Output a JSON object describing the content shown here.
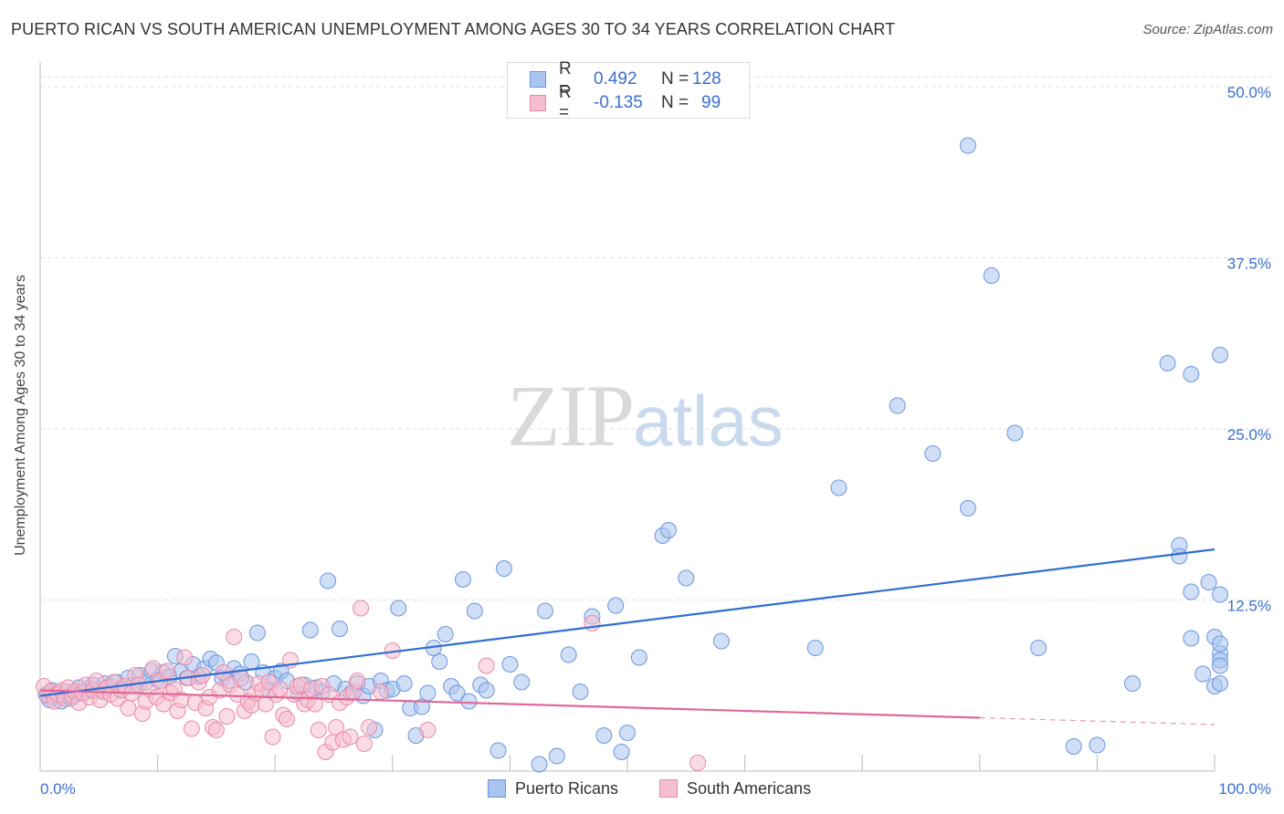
{
  "header": {
    "title": "PUERTO RICAN VS SOUTH AMERICAN UNEMPLOYMENT AMONG AGES 30 TO 34 YEARS CORRELATION CHART",
    "source": "Source: ZipAtlas.com"
  },
  "watermark": {
    "zip": "ZIP",
    "atlas": "atlas"
  },
  "legend": {
    "rows": [
      {
        "r_label": "R =",
        "r_value": "0.492",
        "n_label": "N =",
        "n_value": "128",
        "color": "#a9c4ef",
        "border": "#6b97de"
      },
      {
        "r_label": "R =",
        "r_value": "-0.135",
        "n_label": "N =",
        "n_value": "99",
        "color": "#f6bfd0",
        "border": "#e98aa9"
      }
    ]
  },
  "bottom_legend": [
    {
      "label": "Puerto Ricans",
      "color": "#a9c4ef",
      "border": "#6b97de"
    },
    {
      "label": "South Americans",
      "color": "#f6bfd0",
      "border": "#e98aa9"
    }
  ],
  "chart_data": {
    "type": "scatter",
    "title": "PUERTO RICAN VS SOUTH AMERICAN UNEMPLOYMENT AMONG AGES 30 TO 34 YEARS CORRELATION CHART",
    "xlabel": "",
    "ylabel": "Unemployment Among Ages 30 to 34 years",
    "xlim": [
      0,
      100
    ],
    "ylim": [
      0,
      51
    ],
    "x_tick_labels": [
      "0.0%",
      "100.0%"
    ],
    "y_ticks": [
      12.5,
      25.0,
      37.5,
      50.0
    ],
    "y_tick_labels": [
      "12.5%",
      "25.0%",
      "37.5%",
      "50.0%"
    ],
    "series": [
      {
        "name": "Puerto Ricans",
        "color": "#6b97de",
        "fill": "#a9c4ef",
        "trend": {
          "x": [
            0,
            100
          ],
          "y": [
            5.5,
            16.2
          ],
          "line_color": "#2f6fd0"
        },
        "points": [
          [
            0.5,
            5.6
          ],
          [
            0.8,
            5.2
          ],
          [
            1,
            5.9
          ],
          [
            1.2,
            5.4
          ],
          [
            1.5,
            5.7
          ],
          [
            1.8,
            5.1
          ],
          [
            2,
            5.5
          ],
          [
            2.3,
            5.8
          ],
          [
            2.6,
            5.3
          ],
          [
            3,
            5.6
          ],
          [
            3.3,
            6.1
          ],
          [
            3.7,
            5.7
          ],
          [
            4,
            6.0
          ],
          [
            4.5,
            6.3
          ],
          [
            5,
            5.9
          ],
          [
            5.5,
            6.4
          ],
          [
            6,
            6.2
          ],
          [
            6.5,
            6.5
          ],
          [
            7,
            6.0
          ],
          [
            7.5,
            6.8
          ],
          [
            8,
            6.3
          ],
          [
            8.5,
            7.0
          ],
          [
            9,
            6.5
          ],
          [
            9.5,
            7.3
          ],
          [
            10,
            6.7
          ],
          [
            10.5,
            7.2
          ],
          [
            11,
            6.9
          ],
          [
            11.5,
            8.4
          ],
          [
            12,
            7.3
          ],
          [
            12.5,
            6.8
          ],
          [
            13,
            7.8
          ],
          [
            13.5,
            6.9
          ],
          [
            14,
            7.5
          ],
          [
            14.5,
            8.2
          ],
          [
            15,
            7.9
          ],
          [
            15.5,
            6.8
          ],
          [
            16,
            6.6
          ],
          [
            16.5,
            7.5
          ],
          [
            17,
            7.1
          ],
          [
            17.5,
            6.5
          ],
          [
            18,
            8.0
          ],
          [
            18.5,
            10.1
          ],
          [
            19,
            7.2
          ],
          [
            19.5,
            5.9
          ],
          [
            20,
            6.8
          ],
          [
            20.5,
            7.3
          ],
          [
            21,
            6.6
          ],
          [
            22,
            5.7
          ],
          [
            22.5,
            6.3
          ],
          [
            23,
            10.3
          ],
          [
            23.5,
            6.1
          ],
          [
            24,
            5.8
          ],
          [
            24.5,
            13.9
          ],
          [
            25,
            6.4
          ],
          [
            25.5,
            10.4
          ],
          [
            26,
            6.0
          ],
          [
            26.5,
            5.7
          ],
          [
            27,
            6.4
          ],
          [
            27.5,
            5.5
          ],
          [
            28,
            6.2
          ],
          [
            28.5,
            3.0
          ],
          [
            29,
            6.6
          ],
          [
            29.5,
            5.9
          ],
          [
            30,
            6.0
          ],
          [
            30.5,
            11.9
          ],
          [
            31,
            6.4
          ],
          [
            31.5,
            4.6
          ],
          [
            32,
            2.6
          ],
          [
            32.5,
            4.7
          ],
          [
            33,
            5.7
          ],
          [
            33.5,
            9.0
          ],
          [
            34,
            8.0
          ],
          [
            34.5,
            10.0
          ],
          [
            35,
            6.2
          ],
          [
            35.5,
            5.7
          ],
          [
            36,
            14.0
          ],
          [
            36.5,
            5.1
          ],
          [
            37,
            11.7
          ],
          [
            37.5,
            6.3
          ],
          [
            38,
            5.9
          ],
          [
            39,
            1.5
          ],
          [
            39.5,
            14.8
          ],
          [
            40,
            7.8
          ],
          [
            41,
            6.5
          ],
          [
            42.5,
            0.5
          ],
          [
            43,
            11.7
          ],
          [
            44,
            1.1
          ],
          [
            45,
            8.5
          ],
          [
            46,
            5.8
          ],
          [
            47,
            11.3
          ],
          [
            48,
            2.6
          ],
          [
            49,
            12.1
          ],
          [
            49.5,
            1.4
          ],
          [
            50,
            2.8
          ],
          [
            51,
            8.3
          ],
          [
            53,
            17.2
          ],
          [
            53.5,
            17.6
          ],
          [
            55,
            14.1
          ],
          [
            58,
            9.5
          ],
          [
            66,
            9.0
          ],
          [
            68,
            20.7
          ],
          [
            73,
            26.7
          ],
          [
            76,
            23.2
          ],
          [
            79,
            19.2
          ],
          [
            79,
            45.7
          ],
          [
            81,
            36.2
          ],
          [
            83,
            24.7
          ],
          [
            85,
            9.0
          ],
          [
            88,
            1.8
          ],
          [
            90,
            1.9
          ],
          [
            93,
            6.4
          ],
          [
            96,
            29.8
          ],
          [
            97,
            16.5
          ],
          [
            97,
            15.7
          ],
          [
            98,
            29.0
          ],
          [
            98,
            13.1
          ],
          [
            98,
            9.7
          ],
          [
            99,
            7.1
          ],
          [
            99.5,
            13.8
          ],
          [
            100,
            6.2
          ],
          [
            100,
            9.8
          ],
          [
            100.5,
            12.9
          ],
          [
            101,
            30.4
          ],
          [
            101.5,
            8.6
          ],
          [
            102,
            8.1
          ],
          [
            103,
            6.4
          ],
          [
            103.5,
            9.3
          ],
          [
            103.5,
            7.7
          ]
        ]
      },
      {
        "name": "South Americans",
        "color": "#e98aa9",
        "fill": "#f6bfd0",
        "trend": {
          "x": [
            0,
            80
          ],
          "y": [
            5.9,
            3.9
          ],
          "dash_x": [
            80,
            100
          ],
          "dash_y": [
            3.9,
            3.4
          ],
          "line_color": "#e0689a"
        },
        "points": [
          [
            0.3,
            6.2
          ],
          [
            0.6,
            5.5
          ],
          [
            0.9,
            5.8
          ],
          [
            1.2,
            5.1
          ],
          [
            1.5,
            5.6
          ],
          [
            1.8,
            5.9
          ],
          [
            2.1,
            5.3
          ],
          [
            2.4,
            6.1
          ],
          [
            2.7,
            5.5
          ],
          [
            3,
            5.8
          ],
          [
            3.3,
            5.0
          ],
          [
            3.6,
            5.7
          ],
          [
            3.9,
            6.3
          ],
          [
            4.2,
            5.4
          ],
          [
            4.5,
            5.9
          ],
          [
            4.8,
            6.6
          ],
          [
            5.1,
            5.2
          ],
          [
            5.4,
            5.8
          ],
          [
            5.7,
            6.1
          ],
          [
            6,
            5.6
          ],
          [
            6.3,
            6.5
          ],
          [
            6.6,
            5.3
          ],
          [
            6.9,
            5.9
          ],
          [
            7.2,
            6.2
          ],
          [
            7.5,
            4.6
          ],
          [
            7.8,
            5.7
          ],
          [
            8.1,
            7.0
          ],
          [
            8.4,
            6.3
          ],
          [
            8.7,
            4.2
          ],
          [
            9,
            5.1
          ],
          [
            9.3,
            6.0
          ],
          [
            9.6,
            7.5
          ],
          [
            9.9,
            5.4
          ],
          [
            10.2,
            6.6
          ],
          [
            10.5,
            4.9
          ],
          [
            10.8,
            7.3
          ],
          [
            11.1,
            5.7
          ],
          [
            11.4,
            6.0
          ],
          [
            11.7,
            4.4
          ],
          [
            12,
            5.2
          ],
          [
            12.3,
            8.3
          ],
          [
            12.6,
            6.8
          ],
          [
            12.9,
            3.1
          ],
          [
            13.2,
            5.0
          ],
          [
            13.5,
            6.5
          ],
          [
            13.8,
            7.0
          ],
          [
            14.1,
            4.6
          ],
          [
            14.4,
            5.4
          ],
          [
            14.7,
            3.2
          ],
          [
            15,
            3.0
          ],
          [
            15.3,
            5.9
          ],
          [
            15.6,
            7.2
          ],
          [
            15.9,
            4.0
          ],
          [
            16.2,
            6.3
          ],
          [
            16.5,
            9.8
          ],
          [
            16.8,
            5.6
          ],
          [
            17.1,
            6.8
          ],
          [
            17.4,
            4.4
          ],
          [
            17.7,
            5.1
          ],
          [
            18,
            4.8
          ],
          [
            18.3,
            5.7
          ],
          [
            18.6,
            6.4
          ],
          [
            18.9,
            5.9
          ],
          [
            19.2,
            4.9
          ],
          [
            19.5,
            6.5
          ],
          [
            19.8,
            2.5
          ],
          [
            20.1,
            5.6
          ],
          [
            20.4,
            6.0
          ],
          [
            20.7,
            4.1
          ],
          [
            21,
            3.8
          ],
          [
            21.3,
            8.1
          ],
          [
            21.6,
            5.6
          ],
          [
            21.9,
            6.2
          ],
          [
            22.2,
            6.3
          ],
          [
            22.5,
            4.9
          ],
          [
            22.8,
            5.2
          ],
          [
            23.1,
            6.0
          ],
          [
            23.4,
            4.9
          ],
          [
            23.7,
            3.0
          ],
          [
            24,
            6.2
          ],
          [
            24.3,
            1.4
          ],
          [
            24.6,
            5.6
          ],
          [
            24.9,
            2.1
          ],
          [
            25.2,
            3.2
          ],
          [
            25.5,
            5.0
          ],
          [
            25.8,
            2.3
          ],
          [
            26.1,
            5.4
          ],
          [
            26.4,
            2.5
          ],
          [
            26.7,
            5.8
          ],
          [
            27,
            6.6
          ],
          [
            27.3,
            11.9
          ],
          [
            27.6,
            2.0
          ],
          [
            28,
            3.2
          ],
          [
            29,
            5.8
          ],
          [
            30,
            8.8
          ],
          [
            33,
            3.0
          ],
          [
            38,
            7.7
          ],
          [
            47,
            10.8
          ],
          [
            56,
            0.6
          ]
        ]
      }
    ]
  }
}
